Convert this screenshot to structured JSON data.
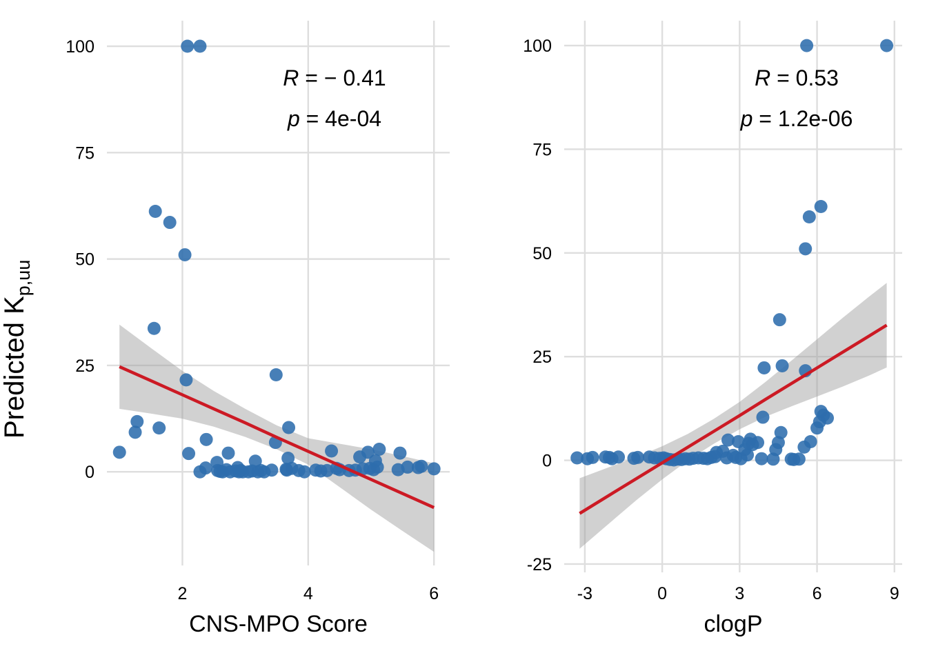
{
  "figure": {
    "ylabel_main": "Predicted K",
    "ylabel_sub": "p,uu",
    "colors": {
      "point": "#2e6dad",
      "regression_line": "#cc1a24",
      "confidence_band": "#999999",
      "grid": "#dedede"
    }
  },
  "chart_data": [
    {
      "type": "scatter",
      "panel": "left",
      "xlabel": "CNS-MPO Score",
      "ylabel": "Predicted K p,uu",
      "xlim": [
        0.8,
        6.25
      ],
      "ylim": [
        -22,
        106
      ],
      "x_ticks": [
        2,
        4,
        6
      ],
      "x_tick_labels": [
        "2",
        "4",
        "6"
      ],
      "y_ticks": [
        0,
        25,
        50,
        75,
        100
      ],
      "y_tick_labels": [
        "0",
        "25",
        "50",
        "75",
        "100"
      ],
      "grid": true,
      "annotations": [
        {
          "label": "R",
          "text": " = − 0.41"
        },
        {
          "label": "p",
          "text": " = 4e-04"
        }
      ],
      "regression": {
        "x": [
          1.0,
          1.5,
          2.0,
          2.5,
          3.0,
          3.5,
          4.0,
          4.5,
          5.0,
          5.5,
          6.0
        ],
        "fit": [
          24.7,
          21.4,
          18.1,
          14.8,
          11.5,
          8.1,
          4.8,
          1.5,
          -1.8,
          -5.1,
          -8.4
        ],
        "lower": [
          14.8,
          13.7,
          12.5,
          10.6,
          8.2,
          5.3,
          1.7,
          -3.6,
          -8.9,
          -13.9,
          -18.8
        ],
        "upper": [
          34.6,
          29.1,
          23.7,
          19.0,
          14.8,
          10.9,
          7.9,
          6.6,
          5.3,
          3.7,
          2.0
        ]
      },
      "points": [
        [
          1.0,
          4.6
        ],
        [
          1.25,
          9.3
        ],
        [
          1.28,
          11.8
        ],
        [
          1.55,
          33.7
        ],
        [
          1.57,
          61.2
        ],
        [
          1.63,
          10.3
        ],
        [
          1.8,
          58.6
        ],
        [
          2.04,
          51.0
        ],
        [
          2.06,
          21.6
        ],
        [
          2.08,
          100
        ],
        [
          2.1,
          4.3
        ],
        [
          2.28,
          100
        ],
        [
          2.28,
          0.0
        ],
        [
          2.37,
          0.9
        ],
        [
          2.38,
          7.6
        ],
        [
          2.55,
          2.2
        ],
        [
          2.56,
          0.3
        ],
        [
          2.6,
          0.1
        ],
        [
          2.64,
          0.0
        ],
        [
          2.7,
          0.5
        ],
        [
          2.73,
          4.4
        ],
        [
          2.76,
          0.0
        ],
        [
          2.85,
          0.2
        ],
        [
          2.88,
          1.0
        ],
        [
          2.9,
          0.0
        ],
        [
          2.93,
          0.3
        ],
        [
          2.96,
          0.0
        ],
        [
          3.05,
          0.0
        ],
        [
          3.11,
          0.2
        ],
        [
          3.16,
          2.5
        ],
        [
          3.2,
          0.0
        ],
        [
          3.25,
          0.3
        ],
        [
          3.3,
          0.0
        ],
        [
          3.42,
          0.4
        ],
        [
          3.48,
          6.9
        ],
        [
          3.49,
          22.8
        ],
        [
          3.65,
          0.6
        ],
        [
          3.66,
          0.4
        ],
        [
          3.68,
          3.2
        ],
        [
          3.69,
          10.4
        ],
        [
          3.74,
          0.8
        ],
        [
          3.85,
          0.3
        ],
        [
          3.94,
          0.0
        ],
        [
          4.12,
          0.4
        ],
        [
          4.2,
          0.2
        ],
        [
          4.3,
          0.3
        ],
        [
          4.37,
          4.9
        ],
        [
          4.45,
          0.8
        ],
        [
          4.5,
          0.5
        ],
        [
          4.65,
          0.3
        ],
        [
          4.75,
          0.4
        ],
        [
          4.82,
          3.5
        ],
        [
          4.87,
          0.7
        ],
        [
          4.95,
          4.6
        ],
        [
          4.98,
          0.8
        ],
        [
          5.04,
          0.5
        ],
        [
          5.07,
          2.6
        ],
        [
          5.1,
          1.1
        ],
        [
          5.13,
          5.3
        ],
        [
          5.43,
          0.5
        ],
        [
          5.46,
          4.4
        ],
        [
          5.58,
          1.1
        ],
        [
          5.75,
          1.0
        ],
        [
          5.8,
          1.3
        ],
        [
          6.0,
          0.7
        ]
      ]
    },
    {
      "type": "scatter",
      "panel": "right",
      "xlabel": "clogP",
      "ylabel": "Predicted K p,uu",
      "xlim": [
        -3.8,
        9.3
      ],
      "ylim": [
        -27,
        106
      ],
      "x_ticks": [
        -3,
        0,
        3,
        6,
        9
      ],
      "x_tick_labels": [
        "-3",
        "0",
        "3",
        "6",
        "9"
      ],
      "y_ticks": [
        -25,
        0,
        25,
        50,
        75,
        100
      ],
      "y_tick_labels": [
        "-25",
        "0",
        "25",
        "50",
        "75",
        "100"
      ],
      "grid": true,
      "annotations": [
        {
          "label": "R",
          "text": " = 0.53"
        },
        {
          "label": "p",
          "text": " = 1.2e-06"
        }
      ],
      "regression": {
        "x": [
          -3.2,
          -2.0,
          -1.0,
          0.0,
          1.0,
          2.0,
          3.0,
          4.0,
          5.0,
          6.0,
          7.0,
          8.0,
          8.7
        ],
        "fit": [
          -12.8,
          -8.2,
          -4.4,
          -0.6,
          3.2,
          7.0,
          10.8,
          14.7,
          18.5,
          22.3,
          26.1,
          29.9,
          32.6
        ],
        "lower": [
          -21.3,
          -14.9,
          -9.6,
          -4.6,
          0.0,
          4.0,
          7.5,
          10.5,
          13.0,
          15.4,
          17.8,
          20.4,
          22.4
        ],
        "upper": [
          -4.3,
          -1.5,
          0.8,
          3.4,
          6.4,
          10.0,
          14.1,
          18.9,
          24.0,
          29.2,
          34.4,
          39.4,
          42.8
        ]
      },
      "points": [
        [
          -3.3,
          0.6
        ],
        [
          -2.9,
          0.4
        ],
        [
          -2.7,
          0.7
        ],
        [
          -2.2,
          0.8
        ],
        [
          -2.05,
          0.7
        ],
        [
          -1.95,
          0.4
        ],
        [
          -1.7,
          0.8
        ],
        [
          -1.1,
          0.5
        ],
        [
          -0.95,
          0.7
        ],
        [
          -0.5,
          0.8
        ],
        [
          -0.3,
          0.6
        ],
        [
          -0.1,
          0.5
        ],
        [
          0.05,
          0.6
        ],
        [
          0.15,
          0.4
        ],
        [
          0.3,
          0.2
        ],
        [
          0.45,
          0.1
        ],
        [
          0.6,
          0.3
        ],
        [
          0.75,
          0.2
        ],
        [
          0.9,
          0.4
        ],
        [
          1.05,
          0.3
        ],
        [
          1.2,
          0.5
        ],
        [
          1.4,
          0.6
        ],
        [
          1.6,
          0.5
        ],
        [
          1.75,
          0.4
        ],
        [
          1.9,
          0.7
        ],
        [
          2.05,
          0.9
        ],
        [
          2.1,
          1.9
        ],
        [
          2.35,
          2.2
        ],
        [
          2.5,
          0.6
        ],
        [
          2.55,
          4.9
        ],
        [
          2.75,
          1.2
        ],
        [
          2.85,
          0.7
        ],
        [
          2.95,
          4.5
        ],
        [
          3.05,
          0.4
        ],
        [
          3.2,
          2.6
        ],
        [
          3.3,
          1.3
        ],
        [
          3.35,
          4.1
        ],
        [
          3.42,
          5.1
        ],
        [
          3.5,
          3.8
        ],
        [
          3.7,
          4.3
        ],
        [
          3.85,
          0.4
        ],
        [
          3.9,
          10.4
        ],
        [
          3.95,
          22.3
        ],
        [
          4.3,
          0.3
        ],
        [
          4.4,
          2.6
        ],
        [
          4.5,
          4.3
        ],
        [
          4.55,
          33.9
        ],
        [
          4.6,
          6.7
        ],
        [
          4.65,
          22.8
        ],
        [
          5.0,
          0.3
        ],
        [
          5.1,
          0.2
        ],
        [
          5.3,
          0.3
        ],
        [
          5.5,
          3.2
        ],
        [
          5.55,
          21.6
        ],
        [
          5.55,
          51.0
        ],
        [
          5.6,
          100
        ],
        [
          5.7,
          58.7
        ],
        [
          5.75,
          4.5
        ],
        [
          6.0,
          7.8
        ],
        [
          6.1,
          9.3
        ],
        [
          6.15,
          61.2
        ],
        [
          6.15,
          11.8
        ],
        [
          6.25,
          10.9
        ],
        [
          6.4,
          10.2
        ],
        [
          8.7,
          100
        ]
      ]
    }
  ]
}
